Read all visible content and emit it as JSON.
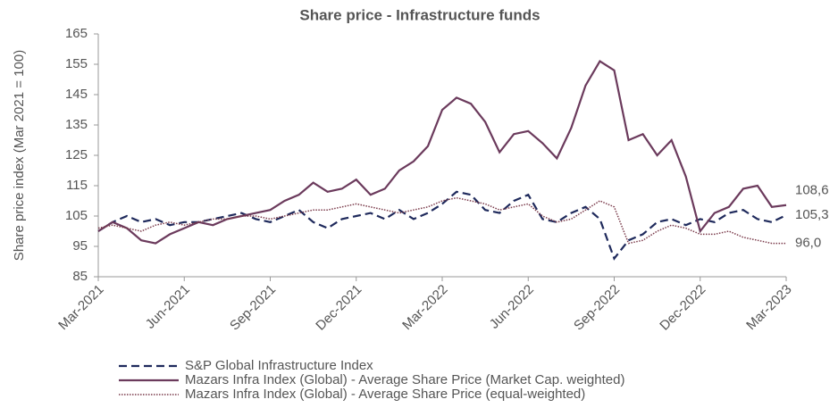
{
  "chart_data": {
    "type": "line",
    "title": "Share price - Infrastructure funds",
    "y_label": "Share price index (Mar 2021 = 100)",
    "categories": [
      "Mar-2021",
      null,
      null,
      null,
      null,
      null,
      "Jun-2021",
      null,
      null,
      null,
      null,
      null,
      "Sep-2021",
      null,
      null,
      null,
      null,
      null,
      "Dec-2021",
      null,
      null,
      null,
      null,
      null,
      "Mar-2022",
      null,
      null,
      null,
      null,
      null,
      "Jun-2022",
      null,
      null,
      null,
      null,
      null,
      "Sep-2022",
      null,
      null,
      null,
      null,
      null,
      "Dec-2022",
      null,
      null,
      null,
      null,
      null,
      "Mar-2023"
    ],
    "series": [
      {
        "name": "S&P Global Infrastructure Index",
        "color": "#1f2a5c",
        "dash": "dashed",
        "values": [
          100,
          103,
          105,
          103,
          104,
          102,
          103,
          103,
          104,
          105,
          106,
          104,
          103,
          105,
          107,
          103,
          101,
          104,
          105,
          106,
          104,
          107,
          104,
          106,
          109,
          113,
          112,
          107,
          106,
          110,
          112,
          104,
          103,
          106,
          108,
          104,
          91,
          97,
          99,
          103,
          104,
          102,
          104,
          103,
          106,
          107,
          104,
          103,
          105.3
        ],
        "value_labels": [
          null,
          null,
          null,
          null,
          null,
          null,
          null,
          null,
          null,
          null,
          null,
          null,
          null,
          null,
          null,
          null,
          null,
          null,
          null,
          null,
          null,
          null,
          null,
          null,
          null,
          null,
          null,
          null,
          null,
          null,
          null,
          null,
          null,
          null,
          null,
          null,
          null,
          null,
          null,
          null,
          null,
          null,
          null,
          null,
          null,
          null,
          null,
          null,
          "105,3"
        ]
      },
      {
        "name": "Mazars Infra Index (Global) - Average Share Price (Market Cap. weighted)",
        "color": "#6b3a5c",
        "dash": "solid",
        "values": [
          100,
          103,
          101,
          97,
          96,
          99,
          101,
          103,
          102,
          104,
          105,
          106,
          107,
          110,
          112,
          116,
          113,
          114,
          117,
          112,
          114,
          120,
          123,
          128,
          140,
          144,
          142,
          136,
          126,
          132,
          133,
          129,
          124,
          134,
          148,
          156,
          153,
          130,
          132,
          125,
          130,
          118,
          100,
          106,
          108,
          114,
          115,
          108,
          108.6
        ],
        "value_labels": [
          null,
          null,
          null,
          null,
          null,
          null,
          null,
          null,
          null,
          null,
          null,
          null,
          null,
          null,
          null,
          null,
          null,
          null,
          null,
          null,
          null,
          null,
          null,
          null,
          null,
          null,
          null,
          null,
          null,
          null,
          null,
          null,
          null,
          null,
          null,
          null,
          null,
          null,
          null,
          null,
          null,
          null,
          null,
          null,
          null,
          null,
          null,
          null,
          "108,6"
        ]
      },
      {
        "name": "Mazars Infra Index (Global) - Average Share Price (equal-weighted)",
        "color": "#7a3a4a",
        "dash": "dotted",
        "values": [
          101,
          102,
          101,
          100,
          102,
          103,
          102,
          103,
          104,
          104,
          105,
          105,
          104,
          105,
          106,
          107,
          107,
          108,
          109,
          108,
          107,
          106,
          107,
          108,
          110,
          111,
          110,
          109,
          107,
          108,
          109,
          105,
          103,
          104,
          107,
          110,
          108,
          96,
          97,
          100,
          102,
          101,
          99,
          99,
          100,
          98,
          97,
          96,
          96
        ],
        "value_labels": [
          null,
          null,
          null,
          null,
          null,
          null,
          null,
          null,
          null,
          null,
          null,
          null,
          null,
          null,
          null,
          null,
          null,
          null,
          null,
          null,
          null,
          null,
          null,
          null,
          null,
          null,
          null,
          null,
          null,
          null,
          null,
          null,
          null,
          null,
          null,
          null,
          null,
          null,
          null,
          null,
          null,
          null,
          null,
          null,
          null,
          null,
          null,
          null,
          "96,0"
        ]
      }
    ],
    "ylim": [
      85,
      165
    ],
    "yticks": [
      85,
      95,
      105,
      115,
      125,
      135,
      145,
      155,
      165
    ],
    "grid": false,
    "legend": "bottom"
  }
}
